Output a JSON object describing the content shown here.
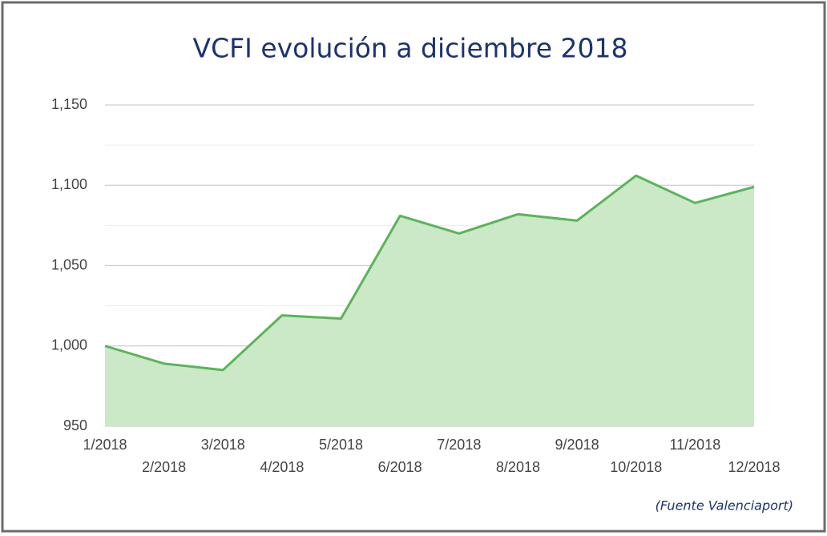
{
  "chart_data": {
    "type": "area",
    "title": "VCFI evolución a diciembre 2018",
    "source": "(Fuente Valenciaport)",
    "categories": [
      "1/2018",
      "2/2018",
      "3/2018",
      "4/2018",
      "5/2018",
      "6/2018",
      "7/2018",
      "8/2018",
      "9/2018",
      "10/2018",
      "11/2018",
      "12/2018"
    ],
    "values": [
      1000,
      989,
      985,
      1019,
      1017,
      1081,
      1070,
      1082,
      1078,
      1106,
      1089,
      1099
    ],
    "color": "#5cb35a",
    "fill_color": "#cbe8c7",
    "ylim": [
      950,
      1150
    ],
    "yticks": [
      950,
      {
        "value": 1000,
        "label": "1,000"
      },
      {
        "value": 1050,
        "label": "1,050"
      },
      {
        "value": 1100,
        "label": "1,100"
      },
      {
        "value": 1150,
        "label": "1,150"
      }
    ],
    "minor_yticks": [
      975,
      1025,
      1075,
      1125
    ],
    "grid": true
  }
}
